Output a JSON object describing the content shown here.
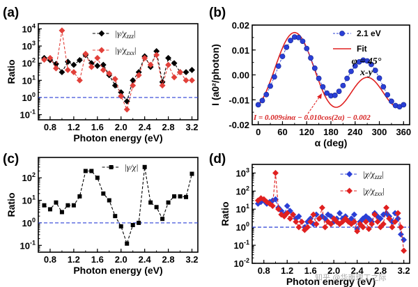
{
  "chart_data": [
    {
      "panel": "(a)",
      "type": "line",
      "yscale": "log",
      "xlabel": "Photon energy (eV)",
      "ylabel": "Ratio",
      "xlim": [
        0.6,
        3.3
      ],
      "ylim": [
        0.05,
        20000
      ],
      "xticks": [
        0.8,
        1.2,
        1.6,
        2.0,
        2.4,
        2.8,
        3.2
      ],
      "xtick_labels": [
        "0.8",
        "1.2",
        "1.6",
        "2.0",
        "2.4",
        "2.8",
        "3.2"
      ],
      "yticks": [
        0.1,
        1,
        10,
        100,
        1000,
        10000
      ],
      "ytick_labels": [
        "10^-1",
        "10^0",
        "10^1",
        "10^2",
        "10^3",
        "10^4"
      ],
      "reference_line": 1,
      "x": [
        0.7,
        0.8,
        0.9,
        1.0,
        1.1,
        1.2,
        1.3,
        1.4,
        1.5,
        1.6,
        1.7,
        1.8,
        1.9,
        2.0,
        2.1,
        2.2,
        2.3,
        2.4,
        2.5,
        2.6,
        2.7,
        2.8,
        2.9,
        3.0,
        3.1,
        3.2
      ],
      "series": [
        {
          "name": "|γ/χzzz|",
          "label_parts": [
            "|γ/χ",
            "zzz",
            "|"
          ],
          "color": "#000000",
          "values": [
            200,
            150,
            90,
            30,
            120,
            80,
            150,
            300,
            100,
            70,
            80,
            20,
            5,
            2,
            0.6,
            10,
            30,
            250,
            60,
            500,
            8,
            200,
            100,
            30,
            30,
            40
          ]
        },
        {
          "name": "|γ/χzxx|",
          "label_parts": [
            "|γ/χ",
            "zxx",
            "|"
          ],
          "color": "#e2403a",
          "values": [
            160,
            200,
            50,
            8000,
            40,
            30,
            10,
            350,
            60,
            200,
            40,
            25,
            12,
            1.2,
            0.2,
            5,
            20,
            200,
            80,
            300,
            5,
            80,
            15,
            30,
            10,
            10
          ]
        }
      ]
    },
    {
      "panel": "(b)",
      "type": "line",
      "xlabel": "α (deg)",
      "ylabel": "I (a0²/photon)",
      "xlim": [
        -15,
        375
      ],
      "ylim": [
        -0.02,
        0.02
      ],
      "xticks": [
        0,
        60,
        120,
        180,
        240,
        300,
        360
      ],
      "xtick_labels": [
        "0",
        "60",
        "120",
        "180",
        "240",
        "300",
        "360"
      ],
      "yticks": [
        -0.02,
        -0.01,
        0.0,
        0.01,
        0.02
      ],
      "ytick_labels": [
        "-0.02",
        "-0.01",
        "0.00",
        "0.01",
        "0.02"
      ],
      "fit_coefficients": {
        "a": 0.009,
        "b": -0.01,
        "c": -0.002
      },
      "x": [
        0,
        10,
        20,
        30,
        40,
        50,
        60,
        70,
        80,
        90,
        100,
        110,
        120,
        130,
        140,
        150,
        160,
        170,
        180,
        190,
        200,
        210,
        220,
        230,
        240,
        250,
        260,
        270,
        280,
        290,
        300,
        310,
        320,
        330,
        340,
        350,
        360
      ],
      "series": [
        {
          "name": "2.1 eV",
          "color": "#2a3fd6",
          "values": [
            -0.012,
            -0.0103,
            -0.0079,
            -0.0045,
            -0.0008,
            0.0035,
            0.0074,
            0.0111,
            0.0138,
            0.0152,
            0.015,
            0.0135,
            0.0106,
            0.0068,
            0.0027,
            -0.0014,
            -0.0048,
            -0.0073,
            -0.0084,
            -0.0082,
            -0.0066,
            -0.0043,
            -0.0014,
            0.0014,
            0.0036,
            0.0052,
            0.0059,
            0.0056,
            0.0042,
            0.0018,
            -0.0013,
            -0.0048,
            -0.008,
            -0.0106,
            -0.0123,
            -0.0128,
            -0.012
          ]
        },
        {
          "name": "Fit",
          "color": "#e02020",
          "formula": "0.009sinα − 0.010cos(2α) − 0.002"
        }
      ],
      "annotations": {
        "phi": "φ = 45°",
        "polarization": "x-y",
        "equation_prefix": "I",
        "equation": " = 0.009sinα − 0.010cos(2α) − 0.002"
      }
    },
    {
      "panel": "(c)",
      "type": "line",
      "yscale": "log",
      "xlabel": "Photon energy (eV)",
      "ylabel": "Ratio",
      "xlim": [
        0.6,
        3.3
      ],
      "ylim": [
        0.05,
        800
      ],
      "xticks": [
        0.8,
        1.2,
        1.6,
        2.0,
        2.4,
        2.8,
        3.2
      ],
      "xtick_labels": [
        "0.8",
        "1.2",
        "1.6",
        "2.0",
        "2.4",
        "2.8",
        "3.2"
      ],
      "yticks": [
        0.1,
        1,
        10,
        100
      ],
      "ytick_labels": [
        "10^-1",
        "10^0",
        "10^1",
        "10^2"
      ],
      "reference_line": 1,
      "x": [
        0.7,
        0.8,
        0.9,
        1.0,
        1.1,
        1.2,
        1.3,
        1.4,
        1.5,
        1.6,
        1.7,
        1.8,
        1.9,
        2.0,
        2.1,
        2.2,
        2.3,
        2.4,
        2.5,
        2.6,
        2.7,
        2.8,
        2.9,
        3.0,
        3.1,
        3.2
      ],
      "series": [
        {
          "name": "|γ/χ|",
          "label_parts": [
            "|γ/χ|",
            "",
            ""
          ],
          "color": "#000000",
          "values": [
            6,
            4,
            8,
            3,
            6,
            6,
            15,
            200,
            200,
            100,
            20,
            10,
            2,
            0.7,
            0.12,
            0.8,
            1,
            300,
            8,
            5,
            1.5,
            8,
            15,
            15,
            14,
            150
          ]
        }
      ]
    },
    {
      "panel": "(d)",
      "type": "line",
      "yscale": "log",
      "xlabel": "Photon energy (eV)",
      "ylabel": "Ratio",
      "xlim": [
        0.6,
        3.3
      ],
      "ylim": [
        0.01,
        3000
      ],
      "xticks": [
        0.8,
        1.2,
        1.6,
        2.0,
        2.4,
        2.8,
        3.2
      ],
      "xtick_labels": [
        "0.8",
        "1.2",
        "1.6",
        "2.0",
        "2.4",
        "2.8",
        "3.2"
      ],
      "yticks": [
        0.01,
        0.1,
        1,
        10,
        100,
        1000
      ],
      "ytick_labels": [
        "10^-2",
        "10^-1",
        "10^0",
        "10^1",
        "10^2",
        "10^3"
      ],
      "reference_line": 1,
      "x": [
        0.7,
        0.75,
        0.8,
        0.85,
        0.9,
        0.95,
        1.0,
        1.05,
        1.1,
        1.15,
        1.2,
        1.25,
        1.3,
        1.35,
        1.4,
        1.45,
        1.5,
        1.55,
        1.6,
        1.65,
        1.7,
        1.75,
        1.8,
        1.85,
        1.9,
        1.95,
        2.0,
        2.05,
        2.1,
        2.15,
        2.2,
        2.25,
        2.3,
        2.35,
        2.4,
        2.45,
        2.5,
        2.55,
        2.6,
        2.65,
        2.7,
        2.75,
        2.8,
        2.85,
        2.9,
        2.95,
        3.0,
        3.05,
        3.1,
        3.15,
        3.2
      ],
      "series": [
        {
          "name": "|χ/χzzz|",
          "label_parts": [
            "|χ/χ",
            "zzz",
            "|"
          ],
          "color": "#2a3fd6",
          "values": [
            20,
            25,
            30,
            20,
            25,
            30,
            35,
            12,
            8,
            5,
            15,
            8,
            5,
            3,
            4,
            2,
            1,
            2,
            3,
            1.5,
            5,
            3,
            4,
            3,
            5,
            4,
            2,
            3,
            6,
            3,
            4,
            2,
            3,
            5,
            0.8,
            2,
            3,
            4,
            3,
            2,
            6,
            4,
            3,
            5,
            6,
            4,
            2,
            6,
            3,
            0.4,
            0.2
          ]
        },
        {
          "name": "|χ/χzxx|",
          "label_parts": [
            "|χ/χ",
            "zxx",
            "|"
          ],
          "color": "#e02020",
          "values": [
            30,
            40,
            35,
            25,
            20,
            15,
            1000,
            10,
            5,
            4,
            6,
            3,
            5,
            2,
            1,
            2,
            0.7,
            1,
            2,
            5,
            1.5,
            3,
            12,
            1,
            2,
            1.5,
            3,
            2,
            1.5,
            2,
            3,
            2,
            1.5,
            2,
            0.6,
            1.5,
            1,
            2,
            0.8,
            1.5,
            5,
            2,
            1,
            1.5,
            12,
            3,
            1,
            2,
            6,
            1,
            0.05
          ]
        }
      ]
    }
  ],
  "watermark": "知乎 @华南理工之际"
}
